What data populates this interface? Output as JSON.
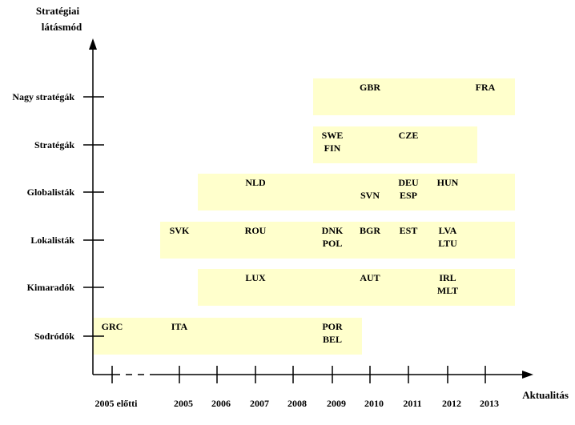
{
  "y_axis_title": [
    "Stratégiai",
    "látásmód"
  ],
  "x_axis_title": "Aktualitás",
  "colors": {
    "band": "#ffffcc",
    "axis": "#000000"
  },
  "x_categories": [
    "2005 előtti",
    "2005",
    "2006",
    "2007",
    "2008",
    "2009",
    "2010",
    "2011",
    "2012",
    "2013"
  ],
  "rows": [
    {
      "label": "Nagy stratégák",
      "band": [
        "2009",
        "2013"
      ],
      "countries": [
        {
          "text": "GBR",
          "col": "2010",
          "line": 0
        },
        {
          "text": "FRA",
          "col": "2013",
          "line": 0
        }
      ]
    },
    {
      "label": "Stratégák",
      "band": [
        "2009",
        "2012"
      ],
      "countries": [
        {
          "text": "SWE",
          "col": "2009",
          "line": 0
        },
        {
          "text": "FIN",
          "col": "2009",
          "line": 1
        },
        {
          "text": "CZE",
          "col": "2011",
          "line": 0
        }
      ]
    },
    {
      "label": "Globalisták",
      "band": [
        "2006",
        "2013"
      ],
      "countries": [
        {
          "text": "NLD",
          "col": "2007",
          "line": 0
        },
        {
          "text": "SVN",
          "col": "2010",
          "line": 1
        },
        {
          "text": "DEU",
          "col": "2011",
          "line": 0
        },
        {
          "text": "ESP",
          "col": "2011",
          "line": 1
        },
        {
          "text": "HUN",
          "col": "2012",
          "line": 0
        }
      ]
    },
    {
      "label": "Lokalisták",
      "band": [
        "2005",
        "2013"
      ],
      "countries": [
        {
          "text": "SVK",
          "col": "2005",
          "line": 0
        },
        {
          "text": "ROU",
          "col": "2007",
          "line": 0
        },
        {
          "text": "DNK",
          "col": "2009",
          "line": 0
        },
        {
          "text": "POL",
          "col": "2009",
          "line": 1
        },
        {
          "text": "BGR",
          "col": "2010",
          "line": 0
        },
        {
          "text": "EST",
          "col": "2011",
          "line": 0
        },
        {
          "text": "LVA",
          "col": "2012",
          "line": 0
        },
        {
          "text": "LTU",
          "col": "2012",
          "line": 1
        }
      ]
    },
    {
      "label": "Kimaradók",
      "band": [
        "2006",
        "2013"
      ],
      "countries": [
        {
          "text": "LUX",
          "col": "2007",
          "line": 0
        },
        {
          "text": "AUT",
          "col": "2010",
          "line": 0
        },
        {
          "text": "IRL",
          "col": "2012",
          "line": 0
        },
        {
          "text": "MLT",
          "col": "2012",
          "line": 1
        }
      ]
    },
    {
      "label": "Sodródók",
      "band": [
        "2005 előtti",
        "2009"
      ],
      "countries": [
        {
          "text": "GRC",
          "col": "2005 előtti",
          "line": 0
        },
        {
          "text": "ITA",
          "col": "2005",
          "line": 0
        },
        {
          "text": "POR",
          "col": "2009",
          "line": 0
        },
        {
          "text": "BEL",
          "col": "2009",
          "line": 1
        }
      ]
    }
  ]
}
